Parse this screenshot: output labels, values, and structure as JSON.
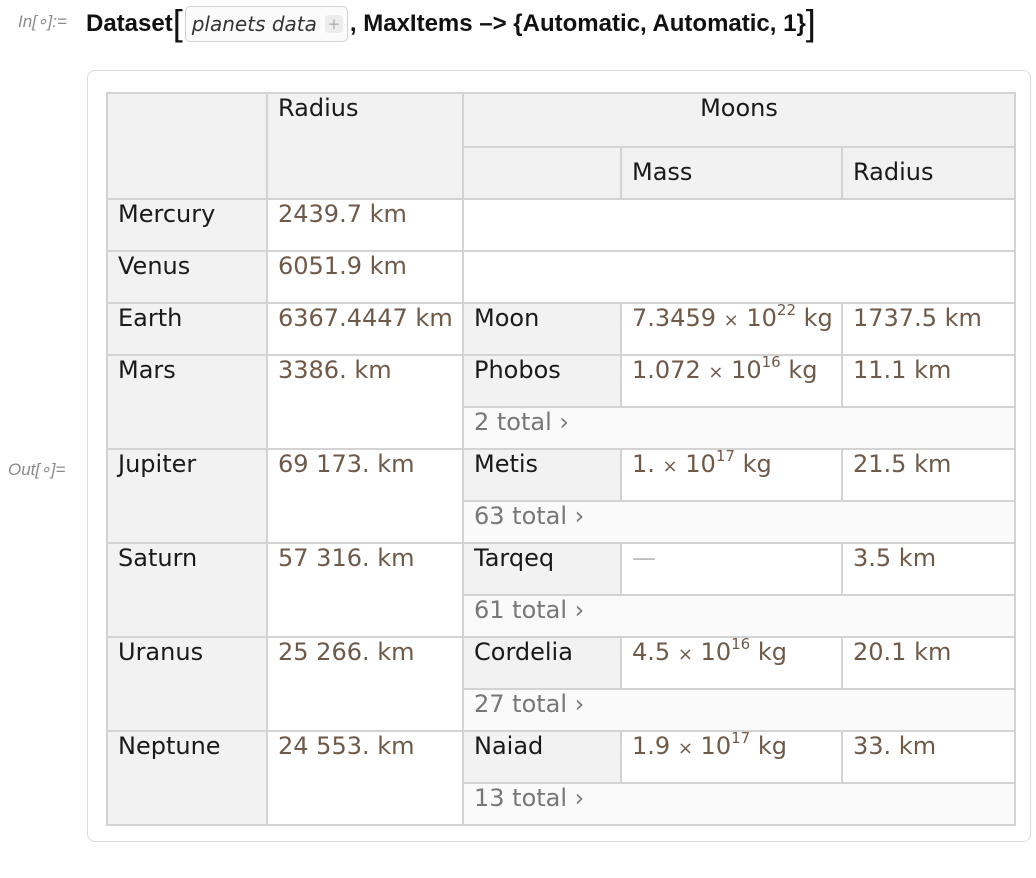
{
  "in_label": "In[∘]:=",
  "out_label": "Out[∘]=",
  "input": {
    "head": "Dataset",
    "open_bracket": "[",
    "chip_label": "planets data",
    "chip_plus": "+",
    "rest": ", MaxItems –> {Automatic, Automatic, 1}",
    "close_bracket": "]"
  },
  "table": {
    "headers": {
      "radius": "Radius",
      "moons": "Moons",
      "mass": "Mass",
      "moon_radius": "Radius"
    },
    "rows": [
      {
        "planet": "Mercury",
        "radius": "2439.7 km"
      },
      {
        "planet": "Venus",
        "radius": "6051.9 km"
      },
      {
        "planet": "Earth",
        "radius": "6367.4447 km",
        "moon": "Moon",
        "mass_mantissa": "7.3459",
        "mass_exp": "22",
        "mass_unit": "kg",
        "moon_radius": "1737.5 km"
      },
      {
        "planet": "Mars",
        "radius": "3386. km",
        "moon": "Phobos",
        "mass_mantissa": "1.072",
        "mass_exp": "16",
        "mass_unit": "kg",
        "moon_radius": "11.1 km",
        "total": "2 total ›"
      },
      {
        "planet": "Jupiter",
        "radius": "69 173. km",
        "moon": "Metis",
        "mass_mantissa": "1.",
        "mass_exp": "17",
        "mass_unit": "kg",
        "moon_radius": "21.5 km",
        "total": "63 total ›"
      },
      {
        "planet": "Saturn",
        "radius": "57 316. km",
        "moon": "Tarqeq",
        "mass_missing": "—",
        "moon_radius": "3.5 km",
        "total": "61 total ›"
      },
      {
        "planet": "Uranus",
        "radius": "25 266. km",
        "moon": "Cordelia",
        "mass_mantissa": "4.5",
        "mass_exp": "16",
        "mass_unit": "kg",
        "moon_radius": "20.1 km",
        "total": "27 total ›"
      },
      {
        "planet": "Neptune",
        "radius": "24 553. km",
        "moon": "Naiad",
        "mass_mantissa": "1.9",
        "mass_exp": "17",
        "mass_unit": "kg",
        "moon_radius": "33. km",
        "total": "13 total ›"
      }
    ],
    "times": "×",
    "ten": "10"
  },
  "colors": {
    "value_text": "#6e5a4b",
    "header_bg": "#f2f2f2",
    "grid": "#d3d3d3"
  }
}
